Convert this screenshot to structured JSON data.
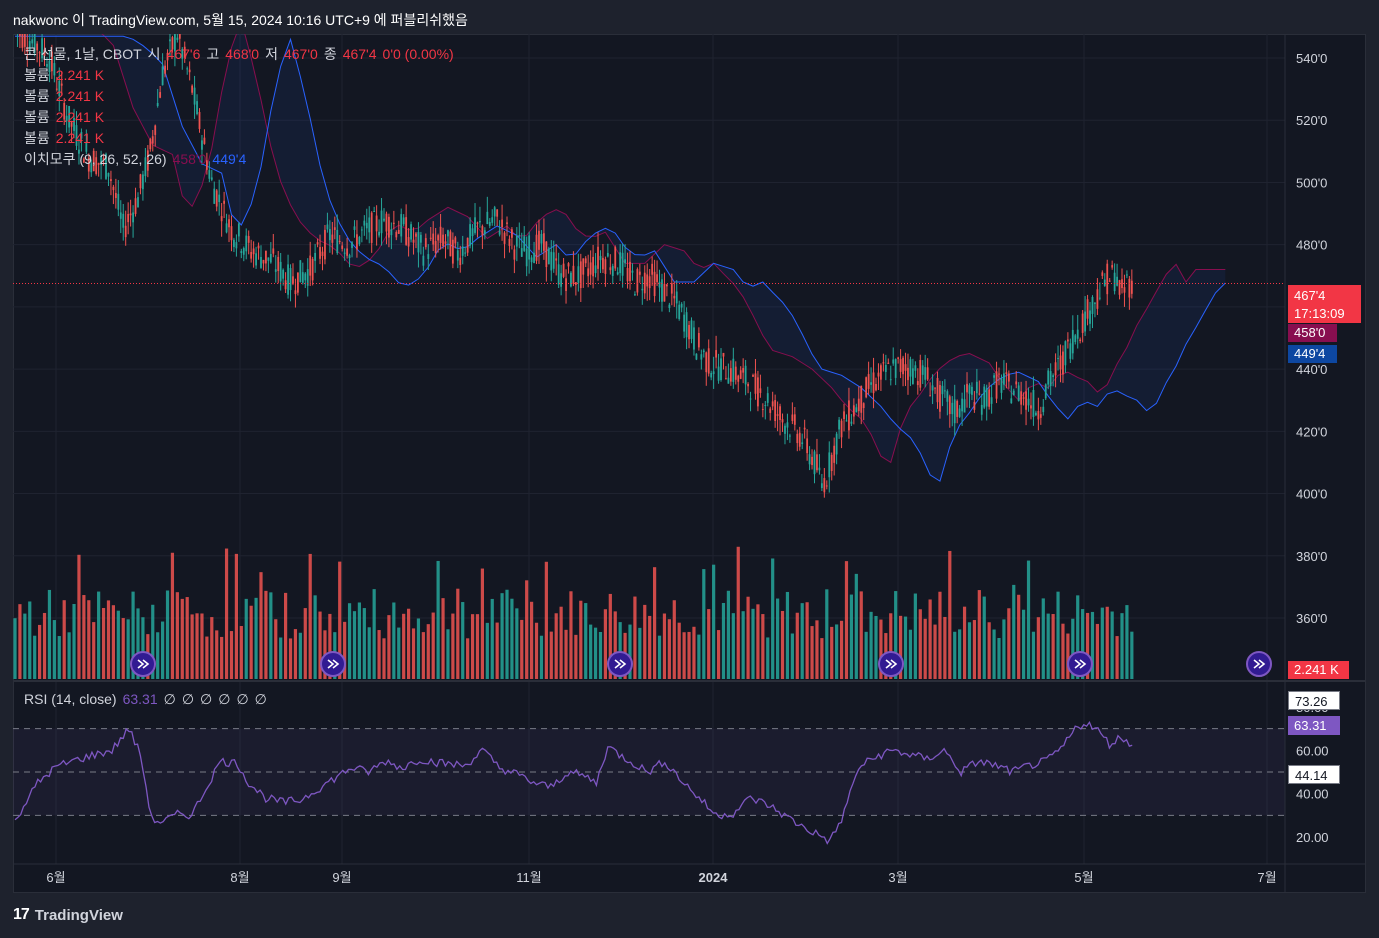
{
  "header": {
    "published_by": "nakwonc 이 TradingView.com, 5월 15, 2024 10:16 UTC+9 에 퍼블리쉬했음"
  },
  "legend": {
    "symbol": "콘 선물, 1날, CBOT",
    "open_label": "시",
    "open": "467'6",
    "high_label": "고",
    "high": "468'0",
    "low_label": "저",
    "low": "467'0",
    "close_label": "종",
    "close": "467'4",
    "change": "0'0 (0.00%)",
    "volume_rows": [
      {
        "label": "볼륨",
        "value": "2.241 K"
      },
      {
        "label": "볼륨",
        "value": "2.241 K"
      },
      {
        "label": "볼륨",
        "value": "2.241 K"
      },
      {
        "label": "볼륨",
        "value": "2.241 K"
      }
    ],
    "ichimoku_label": "이치모쿠 (9, 26, 52, 26)",
    "ichimoku_a": "458'0",
    "ichimoku_b": "449'4"
  },
  "rsi_legend": {
    "label": "RSI (14, close)",
    "value": "63.31",
    "extras": [
      "∅",
      "∅",
      "∅",
      "∅",
      "∅",
      "∅"
    ]
  },
  "price_tags": {
    "last": "467'4",
    "countdown": "17:13:09",
    "span_a": "458'0",
    "span_b": "449'4",
    "volume": "2.241 K",
    "rsi_upper": "73.26",
    "rsi_value": "63.31",
    "rsi_lower": "44.14"
  },
  "colors": {
    "up": "#26a69a",
    "down": "#ef5350",
    "rsi": "#7e57c2",
    "span_a": "#880e4f",
    "span_b": "#2962ff"
  },
  "footer": {
    "brand": "TradingView"
  },
  "chart_data": {
    "type": "candlestick",
    "price_axis": {
      "ticks": [
        "540'0",
        "520'0",
        "500'0",
        "480'0",
        "460'0",
        "440'0",
        "420'0",
        "400'0",
        "380'0",
        "360'0"
      ],
      "tick_values": [
        540,
        520,
        500,
        480,
        460,
        440,
        420,
        400,
        380,
        360
      ]
    },
    "time_axis": {
      "labels": [
        "6월",
        "8월",
        "9월",
        "11월",
        "2024",
        "3월",
        "5월",
        "7월"
      ]
    },
    "series": [
      {
        "name": "콘 선물",
        "description": "daily OHLC approx",
        "path": [
          [
            0,
            549
          ],
          [
            8,
            545
          ],
          [
            14,
            540
          ],
          [
            22,
            520
          ],
          [
            30,
            508
          ],
          [
            38,
            505
          ],
          [
            44,
            485
          ],
          [
            50,
            495
          ],
          [
            55,
            510
          ],
          [
            60,
            535
          ],
          [
            66,
            548
          ],
          [
            72,
            530
          ],
          [
            80,
            500
          ],
          [
            88,
            485
          ],
          [
            96,
            478
          ],
          [
            104,
            475
          ],
          [
            112,
            468
          ],
          [
            120,
            472
          ],
          [
            128,
            483
          ],
          [
            136,
            480
          ],
          [
            142,
            484
          ],
          [
            150,
            488
          ],
          [
            158,
            485
          ],
          [
            166,
            478
          ],
          [
            174,
            482
          ],
          [
            180,
            477
          ],
          [
            188,
            485
          ],
          [
            196,
            488
          ],
          [
            203,
            480
          ],
          [
            208,
            478
          ],
          [
            214,
            480
          ],
          [
            222,
            470
          ],
          [
            230,
            470
          ],
          [
            238,
            476
          ],
          [
            246,
            474
          ],
          [
            252,
            468
          ],
          [
            258,
            470
          ],
          [
            264,
            465
          ],
          [
            268,
            462
          ],
          [
            273,
            455
          ],
          [
            277,
            448
          ],
          [
            282,
            442
          ],
          [
            290,
            440
          ],
          [
            298,
            436
          ],
          [
            306,
            430
          ],
          [
            312,
            424
          ],
          [
            318,
            420
          ],
          [
            322,
            415
          ],
          [
            326,
            408
          ],
          [
            328,
            403
          ],
          [
            330,
            406
          ],
          [
            332,
            412
          ],
          [
            336,
            422
          ],
          [
            342,
            428
          ],
          [
            348,
            435
          ],
          [
            356,
            440
          ],
          [
            362,
            441
          ],
          [
            370,
            438
          ],
          [
            376,
            431
          ],
          [
            382,
            426
          ],
          [
            388,
            432
          ],
          [
            394,
            430
          ],
          [
            400,
            436
          ],
          [
            404,
            434
          ],
          [
            410,
            432
          ],
          [
            416,
            427
          ],
          [
            420,
            435
          ],
          [
            426,
            443
          ],
          [
            430,
            450
          ],
          [
            436,
            458
          ],
          [
            440,
            464
          ],
          [
            444,
            469
          ],
          [
            447,
            470
          ],
          [
            450,
            464
          ],
          [
            452,
            468
          ]
        ]
      },
      {
        "name": "RSI",
        "values_hint": "approx path",
        "path": [
          [
            0,
            28
          ],
          [
            8,
            45
          ],
          [
            14,
            52
          ],
          [
            20,
            55
          ],
          [
            28,
            58
          ],
          [
            34,
            60
          ],
          [
            40,
            70
          ],
          [
            44,
            58
          ],
          [
            48,
            28
          ],
          [
            52,
            27
          ],
          [
            58,
            31
          ],
          [
            62,
            30
          ],
          [
            66,
            40
          ],
          [
            72,
            55
          ],
          [
            78,
            54
          ],
          [
            82,
            45
          ],
          [
            88,
            38
          ],
          [
            94,
            36
          ],
          [
            100,
            37
          ],
          [
            106,
            42
          ],
          [
            112,
            47
          ],
          [
            118,
            52
          ],
          [
            124,
            50
          ],
          [
            130,
            55
          ],
          [
            136,
            52
          ],
          [
            142,
            56
          ],
          [
            150,
            54
          ],
          [
            158,
            53
          ],
          [
            164,
            60
          ],
          [
            170,
            52
          ],
          [
            176,
            49
          ],
          [
            182,
            45
          ],
          [
            188,
            43
          ],
          [
            194,
            50
          ],
          [
            200,
            48
          ],
          [
            204,
            45
          ],
          [
            208,
            62
          ],
          [
            212,
            58
          ],
          [
            216,
            55
          ],
          [
            222,
            50
          ],
          [
            228,
            55
          ],
          [
            234,
            46
          ],
          [
            240,
            38
          ],
          [
            246,
            30
          ],
          [
            252,
            31
          ],
          [
            258,
            38
          ],
          [
            264,
            35
          ],
          [
            270,
            30
          ],
          [
            276,
            25
          ],
          [
            282,
            21
          ],
          [
            286,
            18
          ],
          [
            290,
            28
          ],
          [
            296,
            52
          ],
          [
            302,
            57
          ],
          [
            308,
            60
          ],
          [
            314,
            58
          ],
          [
            320,
            56
          ],
          [
            326,
            60
          ],
          [
            332,
            50
          ],
          [
            338,
            55
          ],
          [
            344,
            53
          ],
          [
            350,
            50
          ],
          [
            356,
            53
          ],
          [
            362,
            55
          ],
          [
            368,
            62
          ],
          [
            372,
            70
          ],
          [
            376,
            73
          ],
          [
            380,
            69
          ],
          [
            384,
            63
          ],
          [
            388,
            66
          ],
          [
            392,
            63
          ]
        ]
      }
    ],
    "rsi_axis": {
      "ticks": [
        "80.00",
        "60.00",
        "40.00",
        "20.00"
      ],
      "tick_values": [
        80,
        60,
        40,
        20
      ],
      "band": [
        30,
        70
      ]
    },
    "volume_last": "2.241 K"
  }
}
